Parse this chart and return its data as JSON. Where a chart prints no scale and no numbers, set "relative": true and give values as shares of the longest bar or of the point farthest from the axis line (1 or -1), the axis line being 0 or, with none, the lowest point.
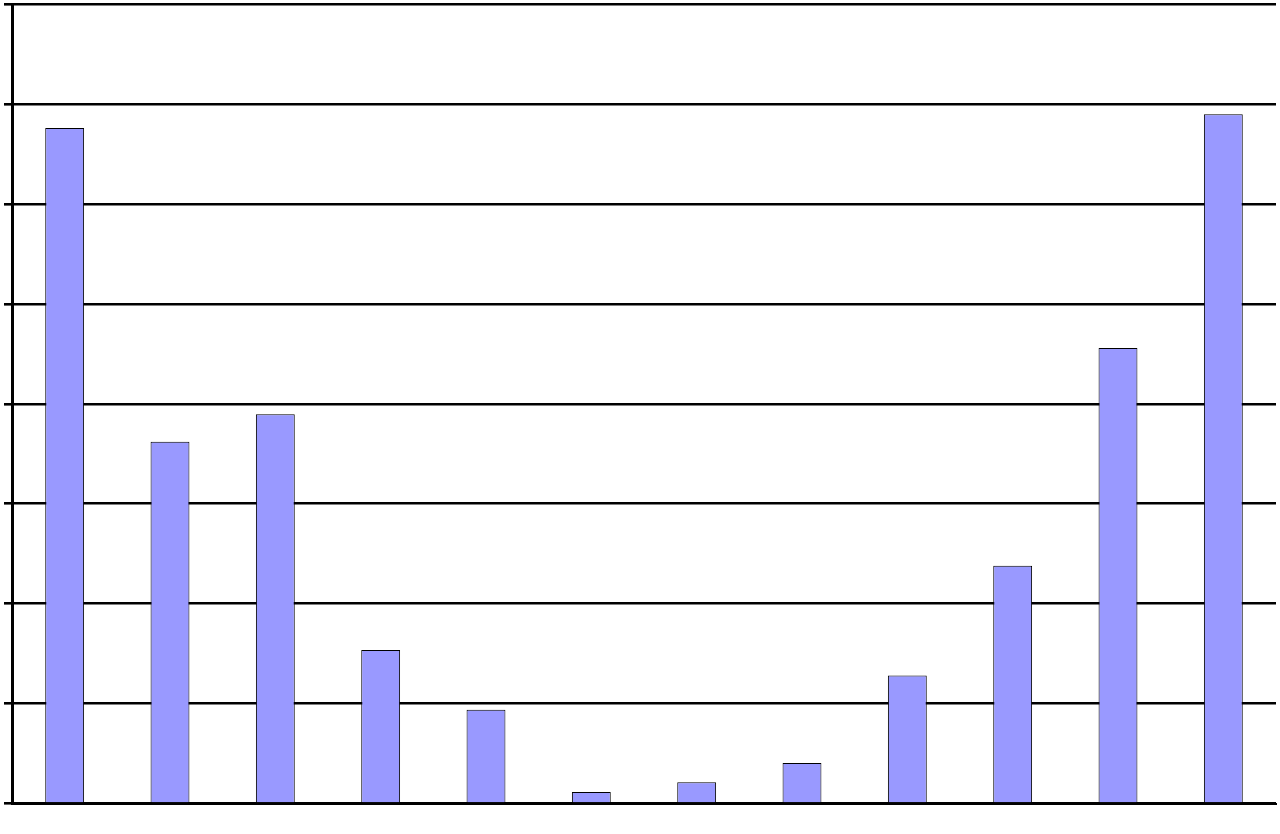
{
  "chart_data": {
    "type": "bar",
    "relative": true,
    "categories": [
      null,
      null,
      null,
      null,
      null,
      null,
      null,
      null,
      null,
      null,
      null,
      null
    ],
    "values": [
      0.98,
      0.525,
      0.565,
      0.223,
      0.136,
      0.017,
      0.031,
      0.059,
      0.186,
      0.345,
      0.661,
      1
    ],
    "color": "#9999ff",
    "grid": "y",
    "legend": false
  }
}
